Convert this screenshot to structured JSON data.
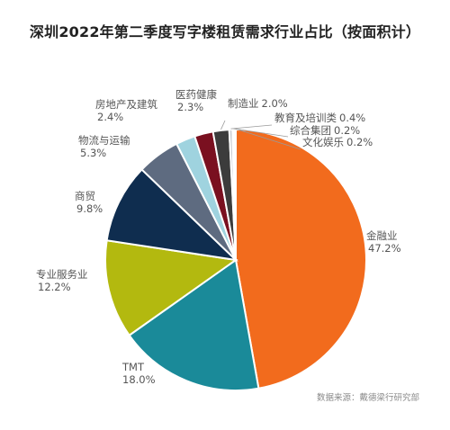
{
  "chart_data": {
    "type": "pie",
    "title": "深圳2022年第二季度写字楼租赁需求行业占比（按面积计）",
    "source": "数据来源：戴德梁行研究部",
    "slices": [
      {
        "name": "金融业",
        "value": 47.2,
        "label": "47.2%",
        "color": "#f26b1d"
      },
      {
        "name": "TMT",
        "value": 18.0,
        "label": "18.0%",
        "color": "#1a8a99"
      },
      {
        "name": "专业服务业",
        "value": 12.2,
        "label": "12.2%",
        "color": "#b3b90f"
      },
      {
        "name": "商贸",
        "value": 9.8,
        "label": "9.8%",
        "color": "#0f2d4f"
      },
      {
        "name": "物流与运输",
        "value": 5.3,
        "label": "5.3%",
        "color": "#5e6b80"
      },
      {
        "name": "房地产及建筑",
        "value": 2.4,
        "label": "2.4%",
        "color": "#9fd3df"
      },
      {
        "name": "医药健康",
        "value": 2.3,
        "label": "2.3%",
        "color": "#7a1020"
      },
      {
        "name": "制造业",
        "value": 2.0,
        "label": "2.0%",
        "color": "#3c3c3c"
      },
      {
        "name": "教育及培训类",
        "value": 0.4,
        "label": "0.4%",
        "color": "#c9ccd3"
      },
      {
        "name": "综合集团",
        "value": 0.2,
        "label": "0.2%",
        "color": "#e8b400"
      },
      {
        "name": "文化娱乐",
        "value": 0.2,
        "label": "0.2%",
        "color": "#4d9a4b"
      }
    ]
  }
}
